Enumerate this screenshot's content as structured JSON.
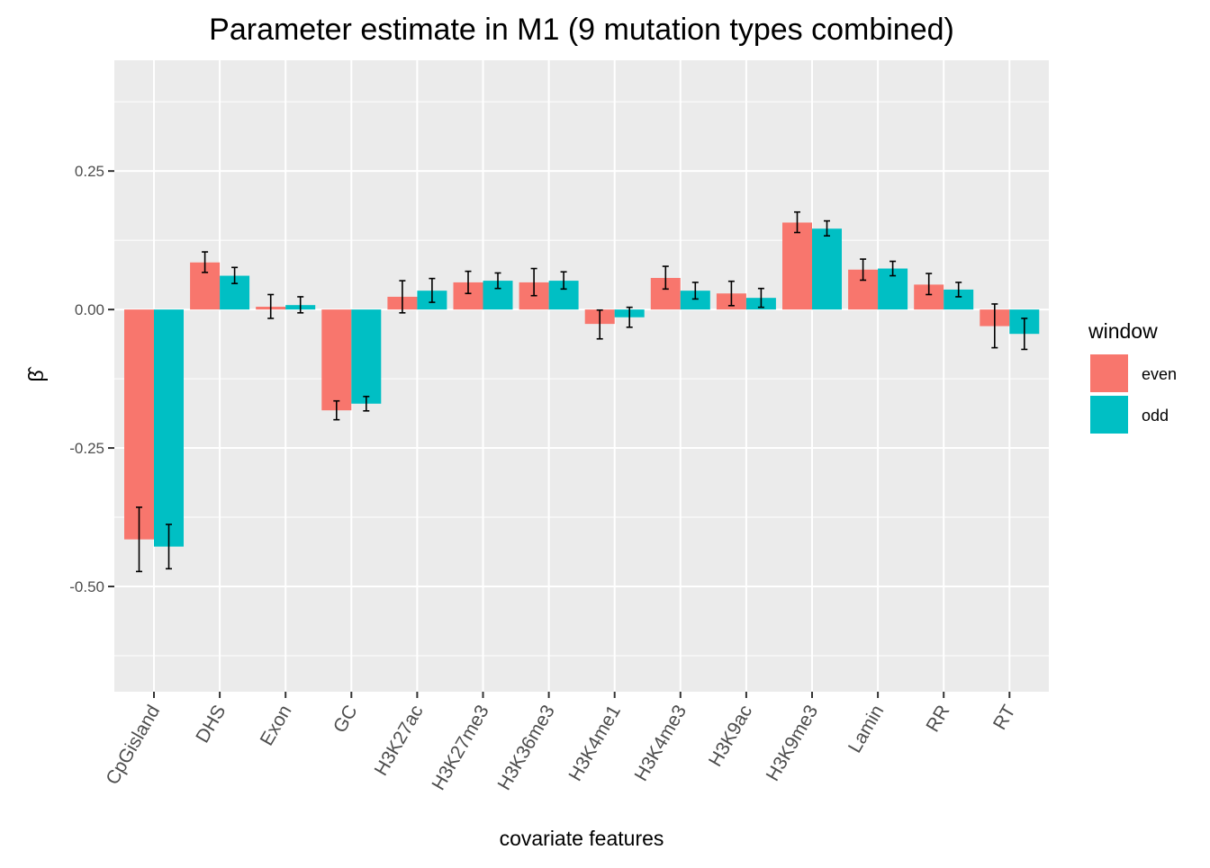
{
  "chart_data": {
    "type": "bar",
    "title": "Parameter estimate in M1 (9 mutation types combined)",
    "xlabel": "covariate features",
    "ylabel": "β̂",
    "ylim": [
      -0.69,
      0.45
    ],
    "yticks": [
      -0.5,
      -0.25,
      0.0,
      0.25
    ],
    "ytick_labels": [
      "-0.50",
      "-0.25",
      "0.00",
      "0.25"
    ],
    "grid": true,
    "legend_placement": "right",
    "legend_title": "window",
    "categories": [
      "CpGisland",
      "DHS",
      "Exon",
      "GC",
      "H3K27ac",
      "H3K27me3",
      "H3K36me3",
      "H3K4me1",
      "H3K4me3",
      "H3K9ac",
      "H3K9me3",
      "Lamin",
      "RR",
      "RT"
    ],
    "series": [
      {
        "name": "even",
        "color": "#F8766D",
        "values": [
          -0.415,
          0.085,
          0.005,
          -0.182,
          0.023,
          0.049,
          0.049,
          -0.026,
          0.057,
          0.029,
          0.157,
          0.072,
          0.045,
          -0.03
        ],
        "error_low": [
          -0.473,
          0.067,
          -0.016,
          -0.199,
          -0.006,
          0.029,
          0.025,
          -0.053,
          0.037,
          0.007,
          0.139,
          0.053,
          0.027,
          -0.069
        ],
        "error_high": [
          -0.357,
          0.104,
          0.027,
          -0.165,
          0.052,
          0.069,
          0.074,
          -0.001,
          0.078,
          0.051,
          0.176,
          0.091,
          0.065,
          0.01
        ]
      },
      {
        "name": "odd",
        "color": "#00BFC4",
        "values": [
          -0.428,
          0.061,
          0.008,
          -0.17,
          0.034,
          0.052,
          0.052,
          -0.014,
          0.034,
          0.021,
          0.146,
          0.074,
          0.036,
          -0.044
        ],
        "error_low": [
          -0.468,
          0.047,
          -0.006,
          -0.183,
          0.013,
          0.038,
          0.037,
          -0.032,
          0.019,
          0.004,
          0.133,
          0.061,
          0.023,
          -0.072
        ],
        "error_high": [
          -0.388,
          0.076,
          0.023,
          -0.157,
          0.056,
          0.066,
          0.068,
          0.004,
          0.049,
          0.038,
          0.16,
          0.087,
          0.049,
          -0.016
        ]
      }
    ]
  }
}
